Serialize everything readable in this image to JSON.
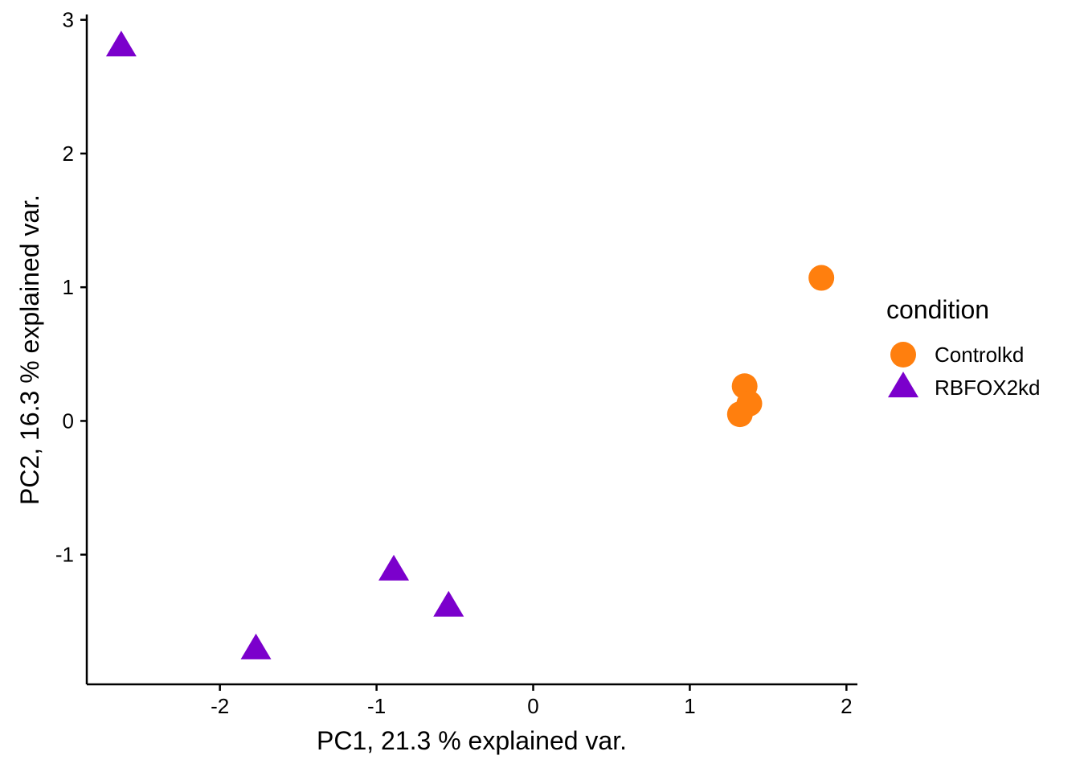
{
  "chart_data": {
    "type": "scatter",
    "xlabel": "PC1, 21.3 % explained var.",
    "ylabel": "PC2, 16.3 % explained var.",
    "xlim": [
      -2.85,
      2.07
    ],
    "ylim": [
      -1.97,
      3.04
    ],
    "xticks": [
      -2,
      -1,
      0,
      1,
      2
    ],
    "yticks": [
      -1,
      0,
      1,
      2,
      3
    ],
    "grid": false,
    "legend": {
      "title": "condition",
      "position": "right"
    },
    "series": [
      {
        "name": "Controlkd",
        "marker": "circle",
        "color": "#FF7F0E",
        "points": [
          {
            "x": 1.84,
            "y": 1.07
          },
          {
            "x": 1.35,
            "y": 0.26
          },
          {
            "x": 1.38,
            "y": 0.13
          },
          {
            "x": 1.32,
            "y": 0.05
          }
        ]
      },
      {
        "name": "RBFOX2kd",
        "marker": "triangle",
        "color": "#7B00CC",
        "points": [
          {
            "x": -2.63,
            "y": 2.8
          },
          {
            "x": -0.89,
            "y": -1.12
          },
          {
            "x": -0.54,
            "y": -1.39
          },
          {
            "x": -1.77,
            "y": -1.71
          }
        ]
      }
    ]
  }
}
